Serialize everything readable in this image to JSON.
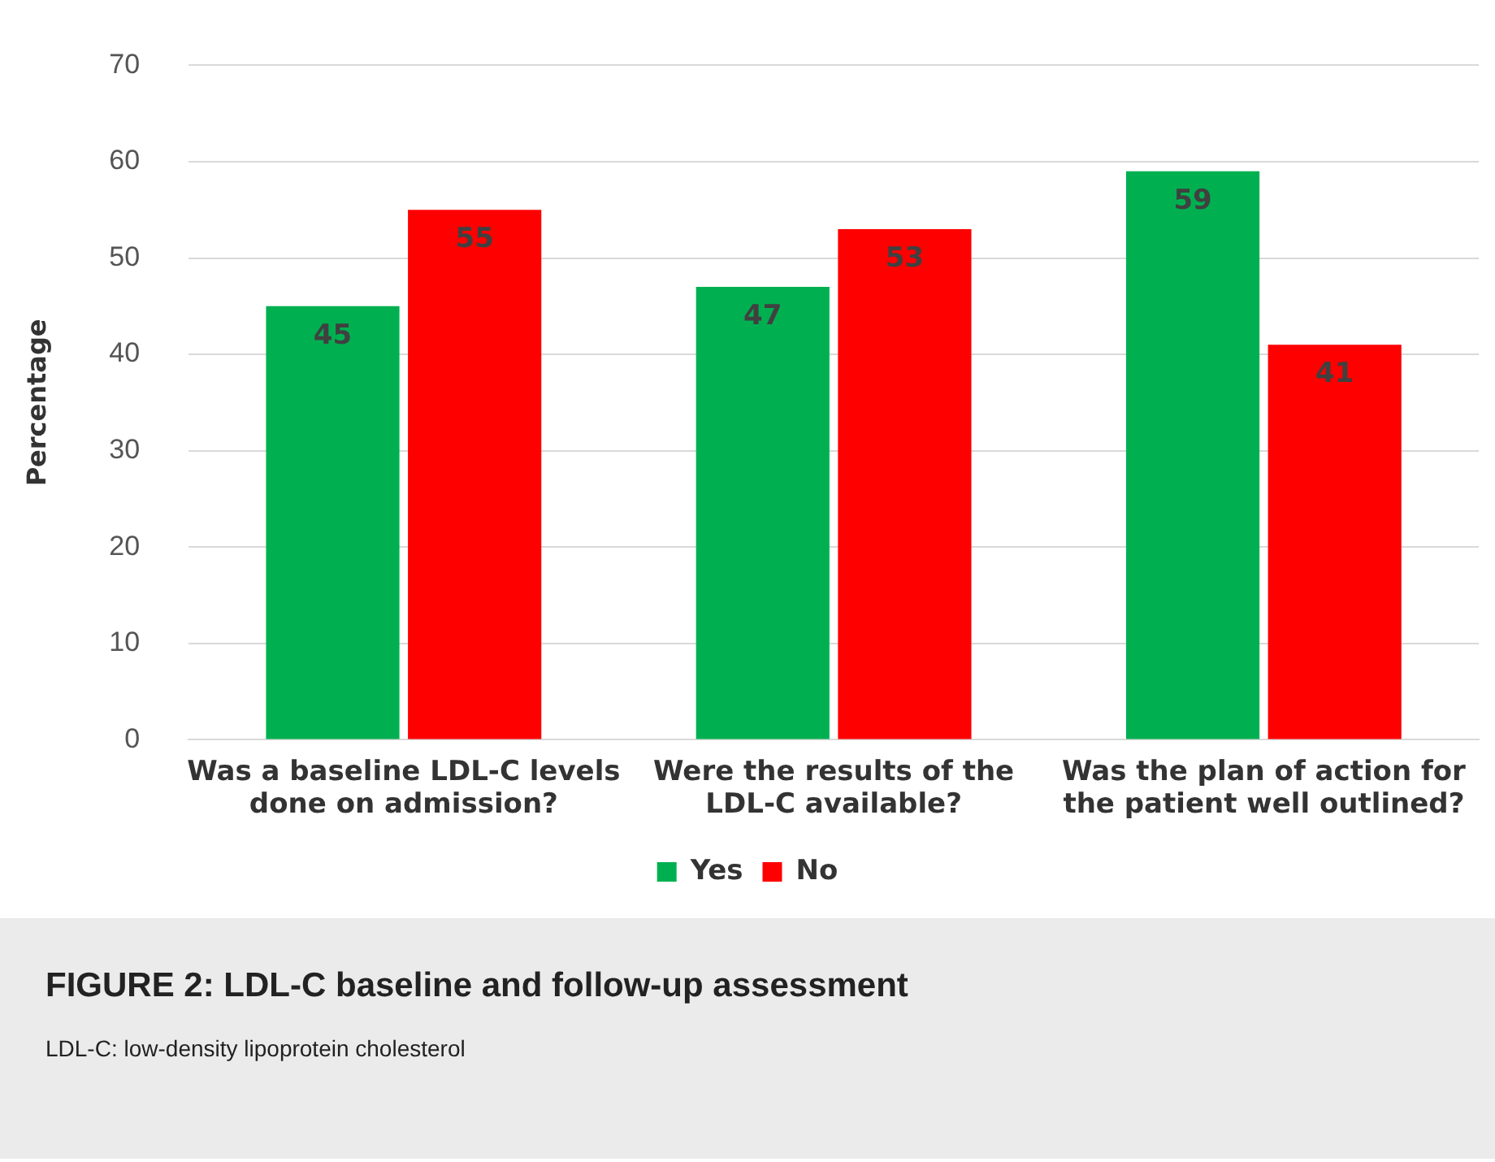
{
  "chart_data": {
    "type": "bar",
    "title": "FIGURE 2: LDL-C baseline and follow-up assessment",
    "annotations": [
      "LDL-C: low-density lipoprotein cholesterol"
    ],
    "ylabel": "Percentage",
    "categories": [
      "Was a baseline LDL-C levels done on admission?",
      "Were the results of the LDL-C available?",
      "Was the plan of action for the patient well outlined?"
    ],
    "series": [
      {
        "name": "Yes",
        "color": "#00b050",
        "values": [
          45,
          47,
          59
        ]
      },
      {
        "name": "No",
        "color": "#ff0000",
        "values": [
          55,
          53,
          41
        ]
      }
    ],
    "ylim": [
      0,
      70
    ],
    "yticks": [
      0,
      10,
      20,
      30,
      40,
      50,
      60,
      70
    ],
    "grid": "y",
    "legend": "bottom",
    "data_labels": true
  }
}
